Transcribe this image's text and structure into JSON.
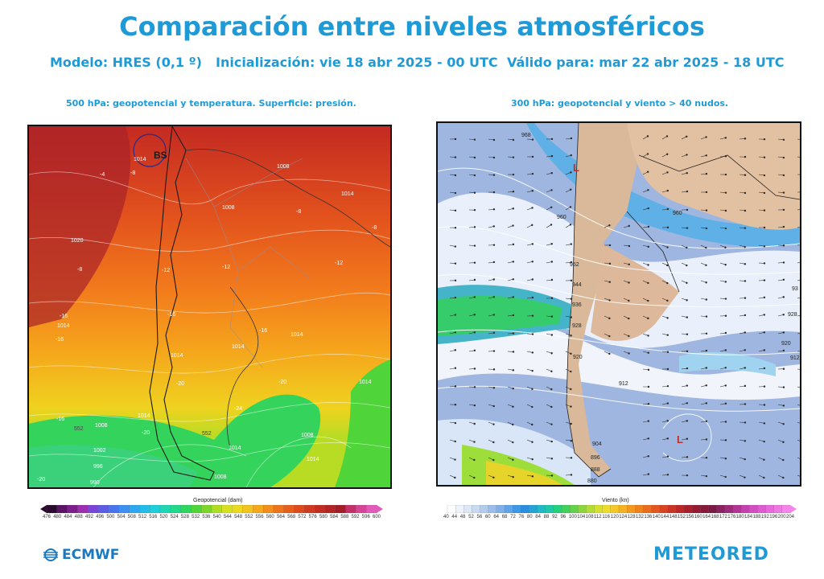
{
  "header": {
    "title": "Comparación entre niveles atmosféricos",
    "model": "Modelo: HRES (0,1 º)",
    "init": "Inicialización: vie 18 abr 2025 - 00 UTC",
    "valid": "Válido para: mar 22 abr 2025 - 18 UTC"
  },
  "left_panel": {
    "caption": "500 hPa: geopotencial y temperatura. Superficie: presión.",
    "low_label": "BS",
    "pressure_labels": [
      "1014",
      "1008",
      "1014",
      "1020",
      "1014",
      "1014",
      "1008",
      "1002",
      "996",
      "990",
      "1014",
      "1008",
      "1014",
      "1014",
      "1008",
      "1014",
      "1008",
      "1014",
      "1014"
    ],
    "temp_labels": [
      "-4",
      "-8",
      "-8",
      "-12",
      "-12",
      "-12",
      "-16",
      "-16",
      "-16",
      "-16",
      "-20",
      "-20",
      "-20",
      "-24",
      "-20",
      "-16",
      "-8",
      "-8"
    ],
    "height_labels": [
      "552",
      "552"
    ],
    "colorbar": {
      "title": "Geopotencial (dam)",
      "ticks": [
        "476",
        "480",
        "484",
        "488",
        "492",
        "496",
        "500",
        "504",
        "508",
        "512",
        "516",
        "520",
        "524",
        "528",
        "532",
        "536",
        "540",
        "544",
        "548",
        "552",
        "556",
        "560",
        "564",
        "568",
        "572",
        "576",
        "580",
        "584",
        "588",
        "592",
        "596",
        "600"
      ],
      "colors": [
        "#2a0a2e",
        "#5a1463",
        "#7d1f8a",
        "#9b2fb0",
        "#7a44d6",
        "#5c5ce6",
        "#4a73ee",
        "#3d8ff2",
        "#2fa6f0",
        "#21bde8",
        "#1ccfd9",
        "#1fd6b2",
        "#22d88a",
        "#2ed660",
        "#4fd43a",
        "#7fd62a",
        "#b0dc24",
        "#d6e021",
        "#ecd81f",
        "#f2c21d",
        "#f5a81c",
        "#f28e1b",
        "#ec741b",
        "#e55e1c",
        "#dc4a1e",
        "#cf3a20",
        "#c22d22",
        "#b32425",
        "#a31d28",
        "#c4306a",
        "#d64496",
        "#e05cb8"
      ]
    }
  },
  "right_panel": {
    "caption": "300 hPa: geopotencial y viento > 40 nudos.",
    "low_label": "L",
    "height_labels": [
      "968",
      "960",
      "960",
      "952",
      "944",
      "936",
      "928",
      "920",
      "912",
      "904",
      "896",
      "888",
      "880",
      "928",
      "920",
      "912",
      "93"
    ],
    "colorbar": {
      "title": "Viento (kn)",
      "ticks": [
        "40",
        "44",
        "48",
        "52",
        "56",
        "60",
        "64",
        "68",
        "72",
        "76",
        "80",
        "84",
        "88",
        "92",
        "96",
        "100",
        "104",
        "108",
        "112",
        "116",
        "120",
        "124",
        "128",
        "132",
        "136",
        "140",
        "144",
        "148",
        "152",
        "156",
        "160",
        "164",
        "168",
        "172",
        "176",
        "180",
        "184",
        "188",
        "192",
        "196",
        "200",
        "204"
      ],
      "colors": [
        "#ffffff",
        "#eef3fb",
        "#dde8f7",
        "#c9dbf3",
        "#b2ccef",
        "#9abdeb",
        "#7fb0ea",
        "#5ea4ea",
        "#3f98e6",
        "#2b8ee0",
        "#26a3d4",
        "#22b8c6",
        "#20c7a6",
        "#24cf7e",
        "#3fd15c",
        "#62d24a",
        "#8bd63c",
        "#b3dc34",
        "#d6e02e",
        "#eedb2a",
        "#f5c826",
        "#f6b023",
        "#f49920",
        "#f0821e",
        "#ea6c1e",
        "#e2571f",
        "#d84421",
        "#cb3424",
        "#bc2627",
        "#aa1d2c",
        "#981a32",
        "#87193a",
        "#7a1a45",
        "#8c2060",
        "#a02a7a",
        "#b23594",
        "#c442ad",
        "#d24fc1",
        "#dd5ccf",
        "#e66ad9",
        "#ed78e1",
        "#f386e8"
      ]
    }
  },
  "footer": {
    "left_logo": "ECMWF",
    "right_logo": "METEORED"
  }
}
